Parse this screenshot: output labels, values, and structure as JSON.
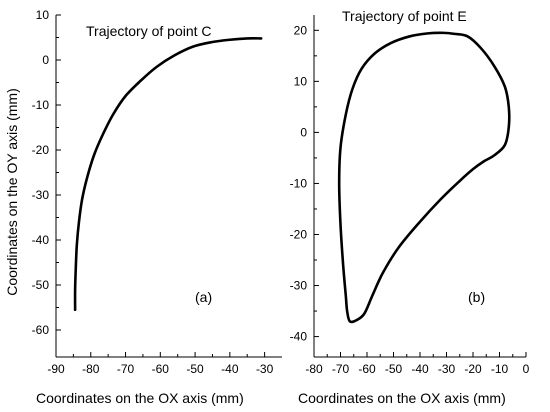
{
  "chart_data": [
    {
      "type": "line",
      "title": "Trajectory of point C",
      "panel_tag": "(a)",
      "xlabel": "Coordinates on the OX axis (mm)",
      "ylabel": "Coordinates on the OY axis (mm)",
      "xlim": [
        -90,
        -25
      ],
      "ylim": [
        -66,
        10
      ],
      "xticks": [
        -90,
        -80,
        -70,
        -60,
        -50,
        -40,
        -30
      ],
      "yticks": [
        -60,
        -50,
        -40,
        -30,
        -20,
        -10,
        0,
        10
      ],
      "xtick_labels": [
        "-90",
        "-80",
        "-70",
        "-60",
        "-50",
        "-40",
        "-30"
      ],
      "ytick_labels": [
        "-60",
        "-50",
        "-40",
        "-30",
        "-20",
        "-10",
        "0",
        "10"
      ],
      "grid": false,
      "series": [
        {
          "x": [
            -84.5,
            -84.5,
            -84.3,
            -84.0,
            -83.4,
            -82.5,
            -81.0,
            -79.0,
            -76.5,
            -73.5,
            -70.0,
            -65.5,
            -61.0,
            -56.0,
            -50.5,
            -45.0,
            -40.0,
            -35.0,
            -31.0
          ],
          "y": [
            -55.5,
            -51.0,
            -46.0,
            -41.0,
            -36.0,
            -31.0,
            -26.0,
            -21.0,
            -16.5,
            -12.0,
            -8.0,
            -4.5,
            -1.5,
            1.0,
            3.0,
            4.0,
            4.5,
            4.8,
            4.8
          ]
        }
      ]
    },
    {
      "type": "line",
      "title": "Trajectory of point E",
      "panel_tag": "(b)",
      "xlabel": "Coordinates on the OX axis (mm)",
      "ylabel": "",
      "xlim": [
        -80,
        0
      ],
      "ylim": [
        -44,
        23
      ],
      "xticks": [
        -80,
        -70,
        -60,
        -50,
        -40,
        -30,
        -20,
        -10,
        0
      ],
      "yticks": [
        -40,
        -30,
        -20,
        -10,
        0,
        10,
        20
      ],
      "xtick_labels": [
        "-80",
        "-70",
        "-60",
        "-50",
        "-40",
        "-30",
        "-20",
        "-10",
        "0"
      ],
      "ytick_labels": [
        "-40",
        "-30",
        "-20",
        "-10",
        "0",
        "10",
        "20"
      ],
      "grid": false,
      "series": [
        {
          "closed": true,
          "x": [
            -27.0,
            -22.0,
            -17.0,
            -12.0,
            -8.0,
            -6.5,
            -6.5,
            -8.0,
            -12.0,
            -16.0,
            -20.0,
            -25.0,
            -32.0,
            -40.0,
            -48.0,
            -54.0,
            -58.0,
            -61.0,
            -64.0,
            -66.5,
            -67.5,
            -68.0,
            -69.0,
            -70.0,
            -70.5,
            -70.0,
            -68.0,
            -65.5,
            -62.0,
            -57.0,
            -51.0,
            -44.0,
            -37.0,
            -31.0
          ],
          "y": [
            19.3,
            18.8,
            16.5,
            13.0,
            9.0,
            5.0,
            1.0,
            -2.5,
            -4.5,
            -5.7,
            -7.2,
            -9.5,
            -13.0,
            -17.5,
            -22.5,
            -27.5,
            -32.0,
            -35.5,
            -36.8,
            -37.0,
            -35.0,
            -32.0,
            -26.0,
            -18.0,
            -10.0,
            -3.0,
            3.5,
            8.5,
            12.5,
            15.5,
            17.5,
            18.8,
            19.4,
            19.5
          ]
        }
      ]
    }
  ]
}
